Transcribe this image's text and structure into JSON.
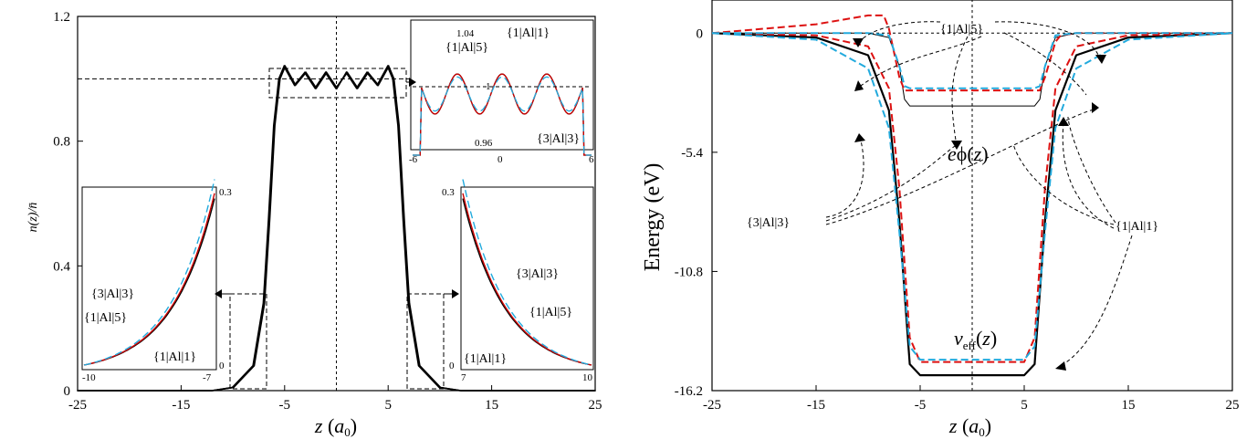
{
  "chart_data": [
    {
      "type": "line",
      "panel": "left",
      "xlabel": "z (a0)",
      "ylabel": "n(z)/n̄",
      "xlim": [
        -25,
        25
      ],
      "ylim": [
        0,
        1.2
      ],
      "xticks": [
        "-25",
        "-15",
        "-5",
        "5",
        "15",
        "25"
      ],
      "yticks": [
        "0",
        "0.4",
        "0.8",
        "1.2"
      ],
      "series": [
        {
          "name": "{1|Al|1}",
          "color": "#000000",
          "style": "solid"
        },
        {
          "name": "{1|Al|5}",
          "color": "#cc0000",
          "style": "solid"
        },
        {
          "name": "{3|Al|3}",
          "color": "#22aadd",
          "style": "dashed"
        }
      ],
      "profile_samples": {
        "z": [
          -25,
          -12,
          -10,
          -8,
          -7,
          -6.5,
          -6,
          -5.5,
          -5,
          -4,
          -3,
          -2,
          -1,
          0,
          1,
          2,
          3,
          4,
          5,
          5.5,
          6,
          6.5,
          7,
          8,
          10,
          12,
          25
        ],
        "n": [
          0,
          0.0,
          0.01,
          0.08,
          0.28,
          0.55,
          0.85,
          1.0,
          1.04,
          0.98,
          1.02,
          0.97,
          1.02,
          0.97,
          1.02,
          0.97,
          1.02,
          0.98,
          1.04,
          1.0,
          0.85,
          0.55,
          0.28,
          0.08,
          0.01,
          0.0,
          0
        ]
      },
      "insets": [
        {
          "xticks": [
            "-6",
            "0",
            "6"
          ],
          "yticks": [
            "0.96",
            "1",
            "1.04"
          ],
          "labels": [
            "{1|Al|5}",
            "{1|Al|1}",
            "{3|Al|3}"
          ]
        },
        {
          "xticks": [
            "-10",
            "-7"
          ],
          "yticks": [
            "0",
            "0.3"
          ],
          "labels": [
            "{3|Al|3}",
            "{1|Al|5}",
            "{1|Al|1}"
          ]
        },
        {
          "xticks": [
            "7",
            "10"
          ],
          "yticks": [
            "0",
            "0.3"
          ],
          "labels": [
            "{3|Al|3}",
            "{1|Al|5}",
            "{1|Al|1}"
          ]
        }
      ]
    },
    {
      "type": "line",
      "panel": "right",
      "xlabel": "z (a0)",
      "ylabel": "Energy (eV)",
      "xlim": [
        -25,
        25
      ],
      "ylim": [
        -16.2,
        1.5
      ],
      "xticks": [
        "-25",
        "-15",
        "-5",
        "5",
        "15",
        "25"
      ],
      "yticks": [
        "0",
        "-5.4",
        "-10.8",
        "-16.2"
      ],
      "curve_labels": [
        "eϕ(z)",
        "veff(z)"
      ],
      "series_labels": [
        "{1|Al|5}",
        "{3|Al|3}",
        "{1|Al|1}"
      ],
      "series": [
        {
          "name": "{1|Al|1}",
          "color": "#000000",
          "style": "solid",
          "veff": {
            "z": [
              -25,
              -15,
              -10,
              -8,
              -7,
              -6,
              -5,
              0,
              5,
              6,
              7,
              8,
              10,
              15,
              25
            ],
            "v": [
              0,
              -0.2,
              -1.0,
              -3.5,
              -8.5,
              -15.0,
              -15.5,
              -15.5,
              -15.5,
              -15.0,
              -8.5,
              -3.5,
              -1.0,
              -0.2,
              0
            ]
          },
          "ephi": {
            "z": [
              -25,
              -10,
              -8,
              -7,
              -6.5,
              -6,
              0,
              6,
              6.5,
              7,
              8,
              10,
              25
            ],
            "v": [
              0,
              0,
              -0.2,
              -1.5,
              -3.0,
              -3.3,
              -3.3,
              -3.3,
              -3.0,
              -1.5,
              -0.2,
              0,
              0
            ]
          }
        },
        {
          "name": "{1|Al|5}",
          "color": "#dd1111",
          "style": "dashed",
          "veff": {
            "z": [
              -25,
              -15,
              -10,
              -8,
              -7,
              -6,
              -5,
              0,
              5,
              6,
              7,
              8,
              10,
              15,
              25
            ],
            "v": [
              0,
              -0.1,
              -0.6,
              -2.5,
              -7.0,
              -13.8,
              -14.9,
              -14.9,
              -14.9,
              -13.8,
              -7.0,
              -2.5,
              -0.6,
              -0.1,
              0
            ]
          },
          "ephi": {
            "z": [
              -25,
              -15,
              -10,
              -8.5,
              -8,
              -7,
              -6.5,
              0,
              6.5,
              7,
              8,
              8.5,
              10,
              25
            ],
            "v": [
              0,
              0.4,
              0.8,
              0.8,
              0.2,
              -2.0,
              -2.6,
              -2.6,
              -2.6,
              -2.0,
              -0.4,
              -0.1,
              0,
              0
            ]
          }
        },
        {
          "name": "{3|Al|3}",
          "color": "#22aadd",
          "style": "dashed",
          "veff": {
            "z": [
              -25,
              -15,
              -10,
              -8,
              -7,
              -6,
              -5,
              0,
              5,
              6,
              7,
              8,
              10,
              15,
              25
            ],
            "v": [
              0,
              -0.3,
              -1.6,
              -4.3,
              -9.0,
              -14.2,
              -14.8,
              -14.8,
              -14.8,
              -14.2,
              -9.0,
              -4.3,
              -1.6,
              -0.3,
              0
            ]
          },
          "ephi": {
            "z": [
              -25,
              -10,
              -8,
              -7,
              -6.5,
              -6,
              0,
              6,
              6.5,
              7,
              8,
              10,
              25
            ],
            "v": [
              0,
              0,
              -0.1,
              -1.5,
              -2.4,
              -2.5,
              -2.5,
              -2.5,
              -2.4,
              -1.5,
              -0.1,
              0,
              0
            ]
          }
        }
      ]
    }
  ]
}
